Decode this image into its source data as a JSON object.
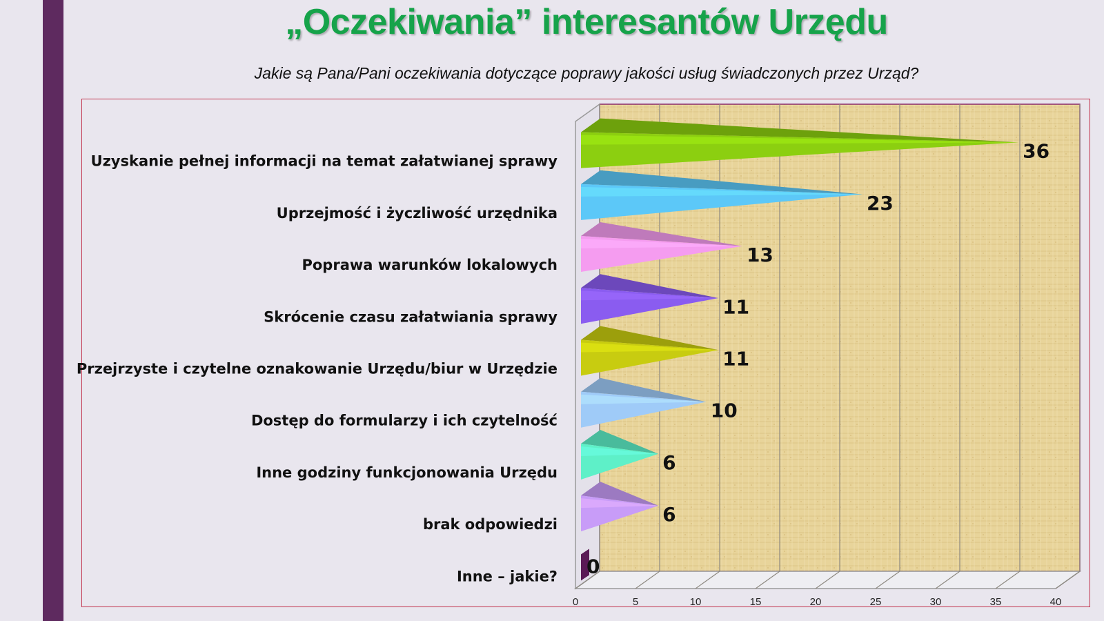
{
  "slide": {
    "title": "„Oczekiwania” interesantów Urzędu",
    "subtitle": "Jakie są Pana/Pani oczekiwania dotyczące poprawy jakości usług świadczonych przez Urząd?"
  },
  "chart_data": {
    "type": "bar",
    "orientation": "horizontal",
    "style": "3d-cone",
    "categories": [
      "Uzyskanie pełnej informacji na temat załatwianej sprawy",
      "Uprzejmość i życzliwość urzędnika",
      "Poprawa warunków lokalowych",
      "Skrócenie czasu załatwiania sprawy",
      "Przejrzyste i czytelne oznakowanie Urzędu/biur w Urzędzie",
      "Dostęp do formularzy i ich czytelność",
      "Inne godziny funkcjonowania Urzędu",
      "brak odpowiedzi",
      "Inne – jakie?"
    ],
    "values": [
      36,
      23,
      13,
      11,
      11,
      10,
      6,
      6,
      0
    ],
    "data_labels": [
      "36",
      "23",
      "13",
      "11",
      "11",
      "10",
      "6",
      "6",
      "0"
    ],
    "colors": [
      "#8ccf10",
      "#5cc8f8",
      "#f59cf0",
      "#8a5cf0",
      "#c8cc10",
      "#9fcbf8",
      "#5ef0c8",
      "#c89cf8",
      "#5a1a55"
    ],
    "xlim": [
      0,
      40
    ],
    "xticks": [
      0,
      5,
      10,
      15,
      20,
      25,
      30,
      35,
      40
    ],
    "xtick_labels": [
      "0",
      "5",
      "10",
      "15",
      "20",
      "25",
      "30",
      "35",
      "40"
    ],
    "grid": true,
    "legend": "none",
    "xlabel": "",
    "ylabel": ""
  }
}
